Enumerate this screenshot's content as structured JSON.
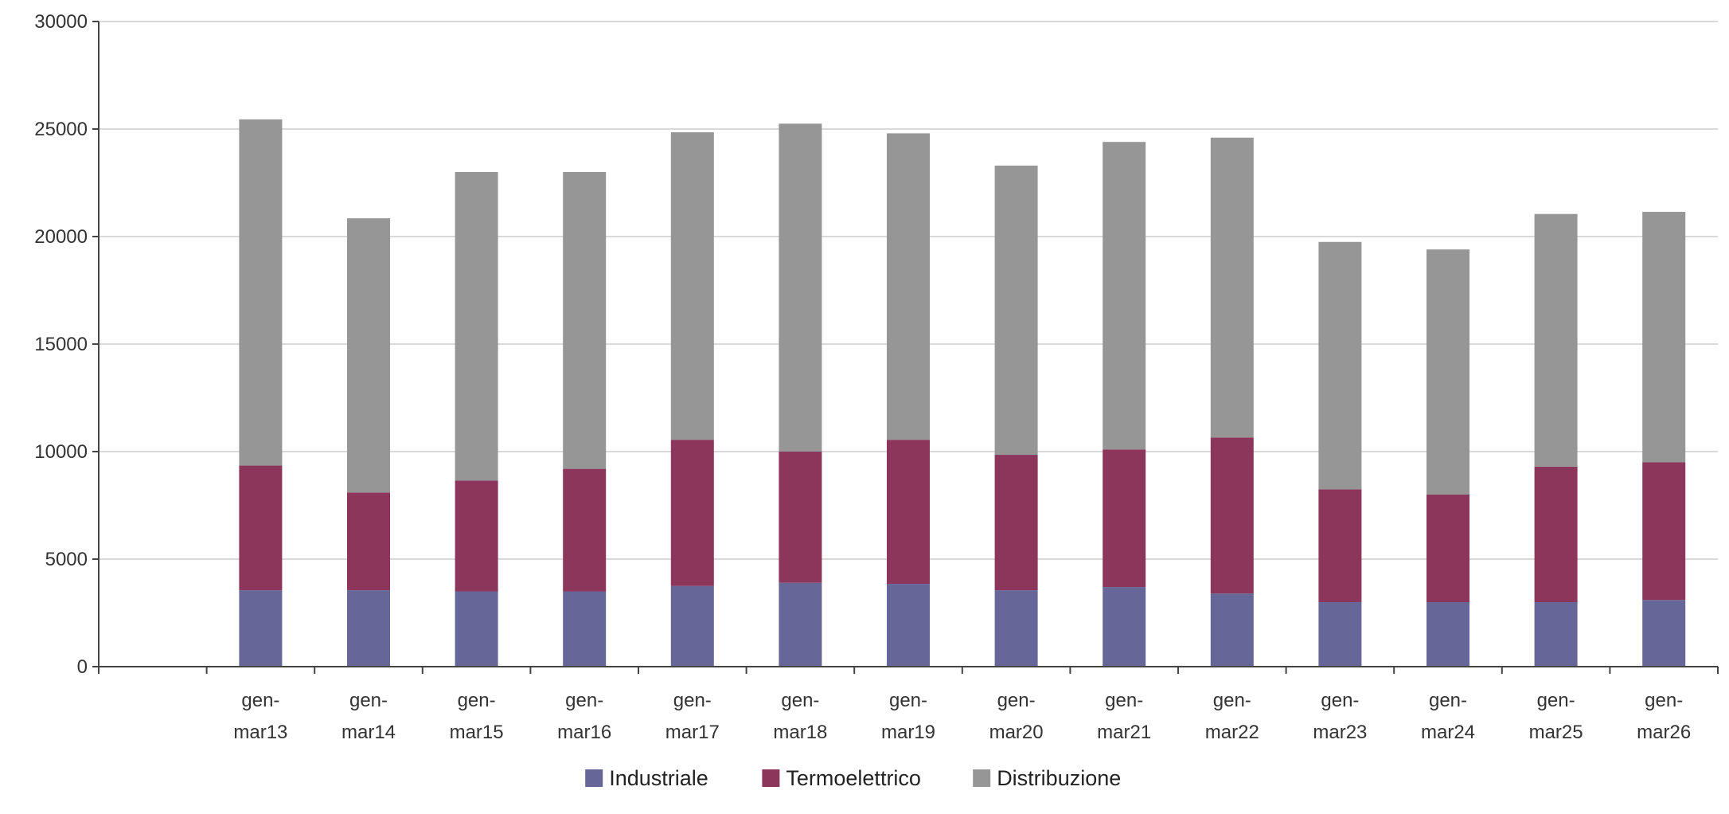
{
  "chart_data": {
    "type": "bar",
    "stacked": true,
    "title": "",
    "xlabel": "",
    "ylabel": "",
    "ylim": [
      0,
      30000
    ],
    "yticks": [
      0,
      5000,
      10000,
      15000,
      20000,
      25000,
      30000
    ],
    "grid": true,
    "legend_position": "bottom-center",
    "categories": [
      "",
      "gen-mar13",
      "gen-mar14",
      "gen-mar15",
      "gen-mar16",
      "gen-mar17",
      "gen-mar18",
      "gen-mar19",
      "gen-mar20",
      "gen-mar21",
      "gen-mar22",
      "gen-mar23",
      "gen-mar24",
      "gen-mar25",
      "gen-mar26"
    ],
    "category_lines": [
      [
        "",
        ""
      ],
      [
        "gen-",
        "mar13"
      ],
      [
        "gen-",
        "mar14"
      ],
      [
        "gen-",
        "mar15"
      ],
      [
        "gen-",
        "mar16"
      ],
      [
        "gen-",
        "mar17"
      ],
      [
        "gen-",
        "mar18"
      ],
      [
        "gen-",
        "mar19"
      ],
      [
        "gen-",
        "mar20"
      ],
      [
        "gen-",
        "mar21"
      ],
      [
        "gen-",
        "mar22"
      ],
      [
        "gen-",
        "mar23"
      ],
      [
        "gen-",
        "mar24"
      ],
      [
        "gen-",
        "mar25"
      ],
      [
        "gen-",
        "mar26"
      ]
    ],
    "series": [
      {
        "name": "Industriale",
        "color": "#666699",
        "values": [
          null,
          3550,
          3550,
          3500,
          3500,
          3750,
          3900,
          3850,
          3550,
          3700,
          3400,
          3000,
          3000,
          3000,
          3100
        ]
      },
      {
        "name": "Termoelettrico",
        "color": "#8c365c",
        "values": [
          null,
          5800,
          4550,
          5150,
          5700,
          6800,
          6100,
          6700,
          6300,
          6400,
          7250,
          5250,
          5000,
          6300,
          6400
        ]
      },
      {
        "name": "Distribuzione",
        "color": "#969696",
        "values": [
          null,
          16100,
          12750,
          14350,
          13800,
          14300,
          15250,
          14250,
          13450,
          14300,
          13950,
          11500,
          11400,
          11750,
          11650
        ]
      }
    ]
  }
}
